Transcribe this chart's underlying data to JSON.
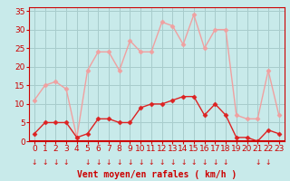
{
  "x": [
    0,
    1,
    2,
    3,
    4,
    5,
    6,
    7,
    8,
    9,
    10,
    11,
    12,
    13,
    14,
    15,
    16,
    17,
    18,
    19,
    20,
    21,
    22,
    23
  ],
  "wind_avg": [
    2,
    5,
    5,
    5,
    1,
    2,
    6,
    6,
    5,
    5,
    9,
    10,
    10,
    11,
    12,
    12,
    7,
    10,
    7,
    1,
    1,
    0,
    3,
    2
  ],
  "wind_gust": [
    11,
    15,
    16,
    14,
    1,
    19,
    24,
    24,
    19,
    27,
    24,
    24,
    32,
    31,
    26,
    34,
    25,
    30,
    30,
    7,
    6,
    6,
    19,
    7
  ],
  "avg_color": "#dd2222",
  "gust_color": "#f0a0a0",
  "bg_color": "#c8eaea",
  "grid_color": "#a8cccc",
  "axis_color": "#cc0000",
  "red_line_color": "#cc0000",
  "ylabel_values": [
    0,
    5,
    10,
    15,
    20,
    25,
    30,
    35
  ],
  "ylim": [
    0,
    36
  ],
  "xlim": [
    -0.5,
    23.5
  ],
  "xlabel": "Vent moyen/en rafales ( km/h )",
  "arrow_hours": [
    0,
    1,
    2,
    3,
    5,
    6,
    7,
    8,
    9,
    10,
    11,
    12,
    13,
    14,
    15,
    16,
    17,
    18,
    21,
    22
  ],
  "xlabel_fontsize": 7,
  "tick_fontsize": 6.5,
  "marker": "D",
  "markersize": 2.5
}
